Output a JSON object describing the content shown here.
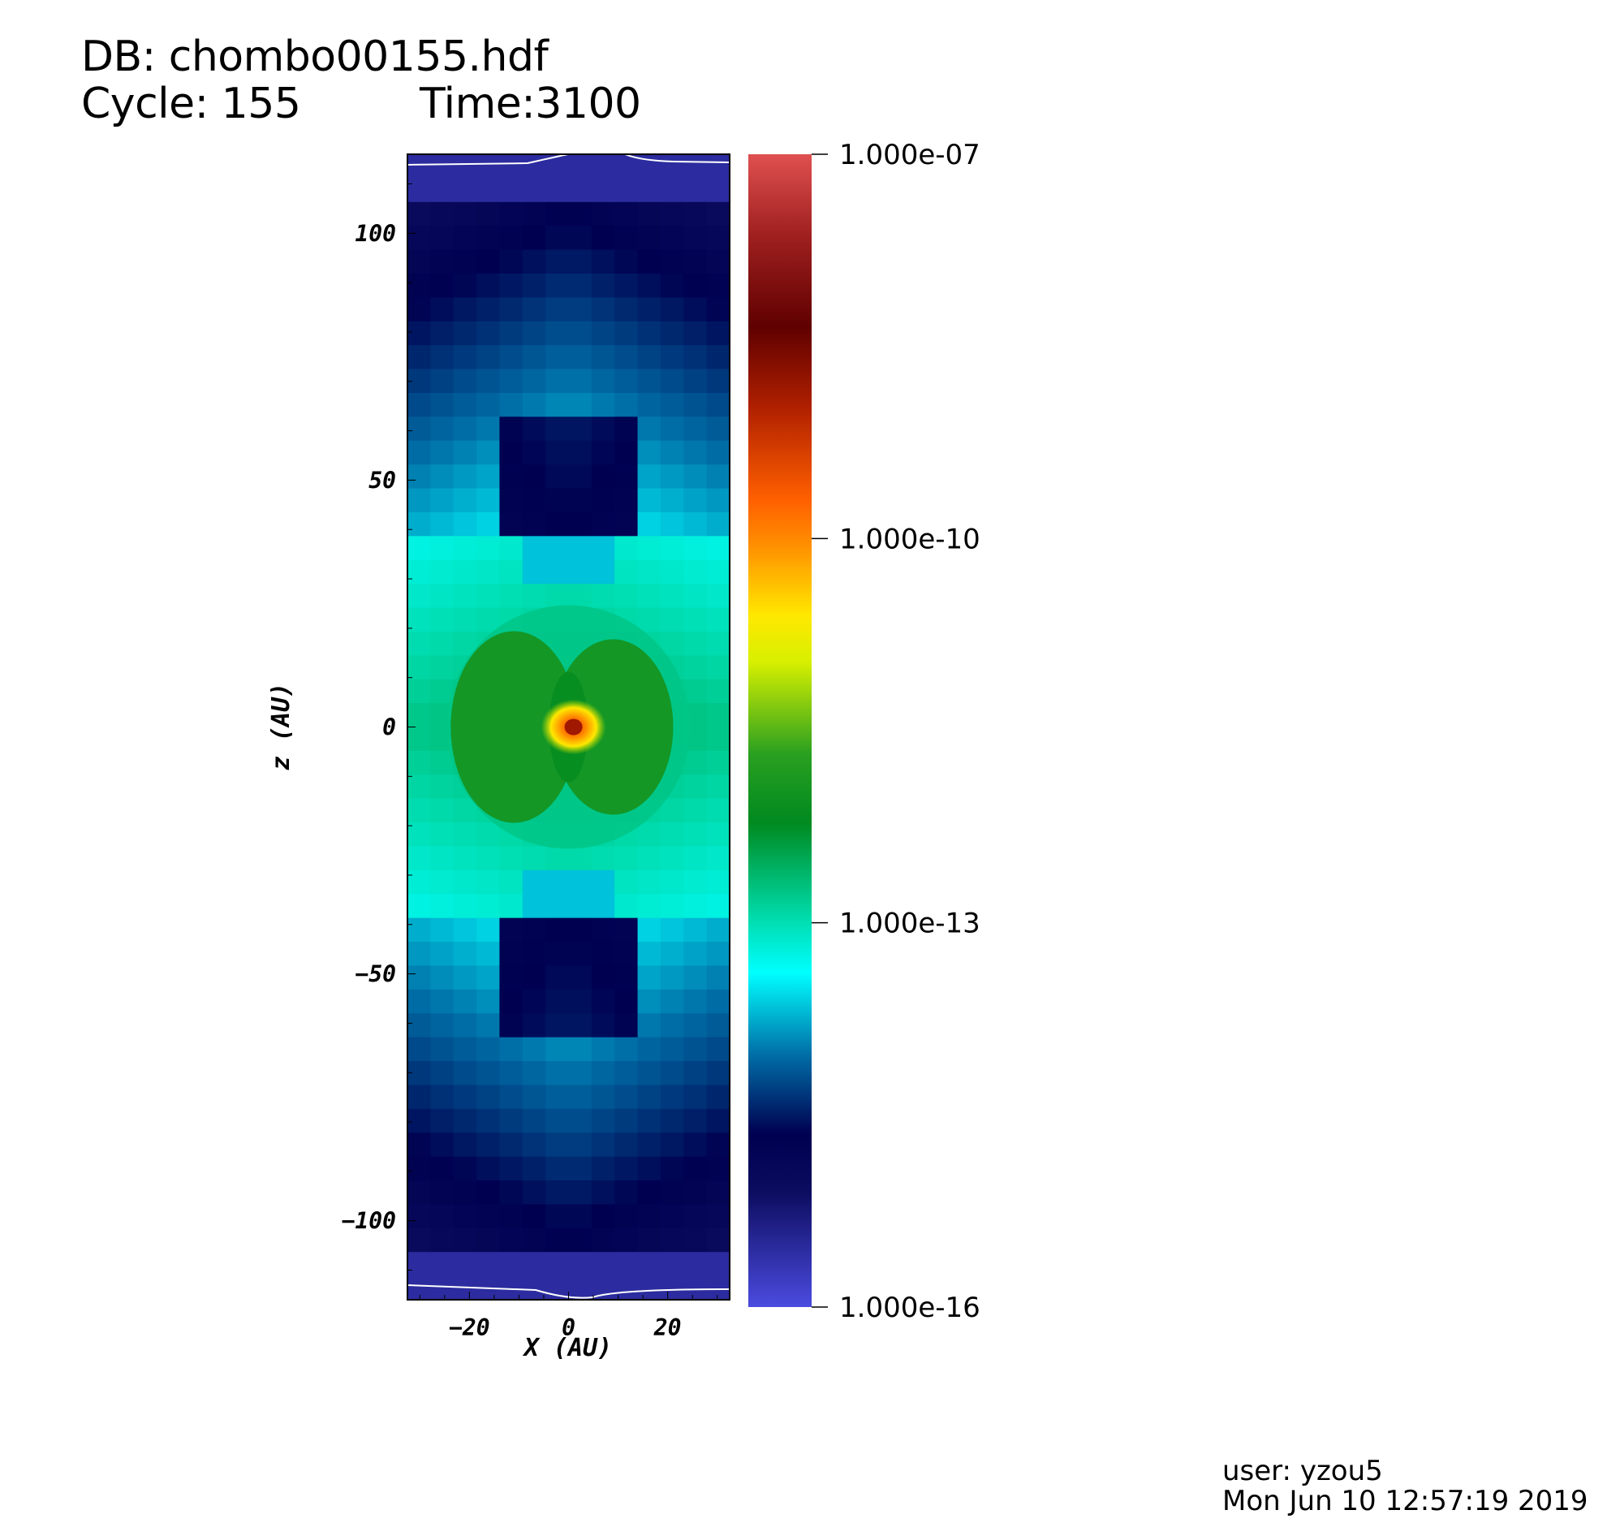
{
  "header": {
    "db_line": "DB: chombo00155.hdf",
    "cycle_line": "Cycle: 155",
    "time_line": "Time:3100"
  },
  "footer": {
    "user": "user: yzou5",
    "date": "Mon Jun 10 12:57:19 2019"
  },
  "chart_data": {
    "type": "heatmap",
    "title": "",
    "xlabel": "X (AU)",
    "ylabel": "z (AU)",
    "xlim": [
      -32.5,
      32.5
    ],
    "ylim": [
      -116,
      116
    ],
    "x_ticks": [
      -20,
      0,
      20
    ],
    "y_ticks": [
      -100,
      -50,
      0,
      50,
      100
    ],
    "x_tick_labels": [
      "−20",
      "0",
      "20"
    ],
    "y_tick_labels": [
      "−100",
      "−50",
      "0",
      "50",
      "100"
    ],
    "colorbar": {
      "scale": "log",
      "min": 1e-16,
      "max": 1e-07,
      "tick_labels": [
        "1.000e-07",
        "1.000e-10",
        "1.000e-13",
        "1.000e-16"
      ],
      "tick_values": [
        1e-07,
        1e-10,
        1e-13,
        1e-16
      ],
      "colormap": [
        {
          "t": 0.0,
          "color": "#4b4be0"
        },
        {
          "t": 0.1,
          "color": "#0c0c60"
        },
        {
          "t": 0.15,
          "color": "#000050"
        },
        {
          "t": 0.22,
          "color": "#0070a8"
        },
        {
          "t": 0.29,
          "color": "#00ffff"
        },
        {
          "t": 0.34,
          "color": "#00d9a8"
        },
        {
          "t": 0.42,
          "color": "#008a20"
        },
        {
          "t": 0.48,
          "color": "#2aa020"
        },
        {
          "t": 0.56,
          "color": "#d8f000"
        },
        {
          "t": 0.6,
          "color": "#ffe800"
        },
        {
          "t": 0.66,
          "color": "#ff9000"
        },
        {
          "t": 0.7,
          "color": "#ff6000"
        },
        {
          "t": 0.78,
          "color": "#b02000"
        },
        {
          "t": 0.85,
          "color": "#600000"
        },
        {
          "t": 0.93,
          "color": "#a02020"
        },
        {
          "t": 1.0,
          "color": "#e05050"
        }
      ]
    }
  }
}
